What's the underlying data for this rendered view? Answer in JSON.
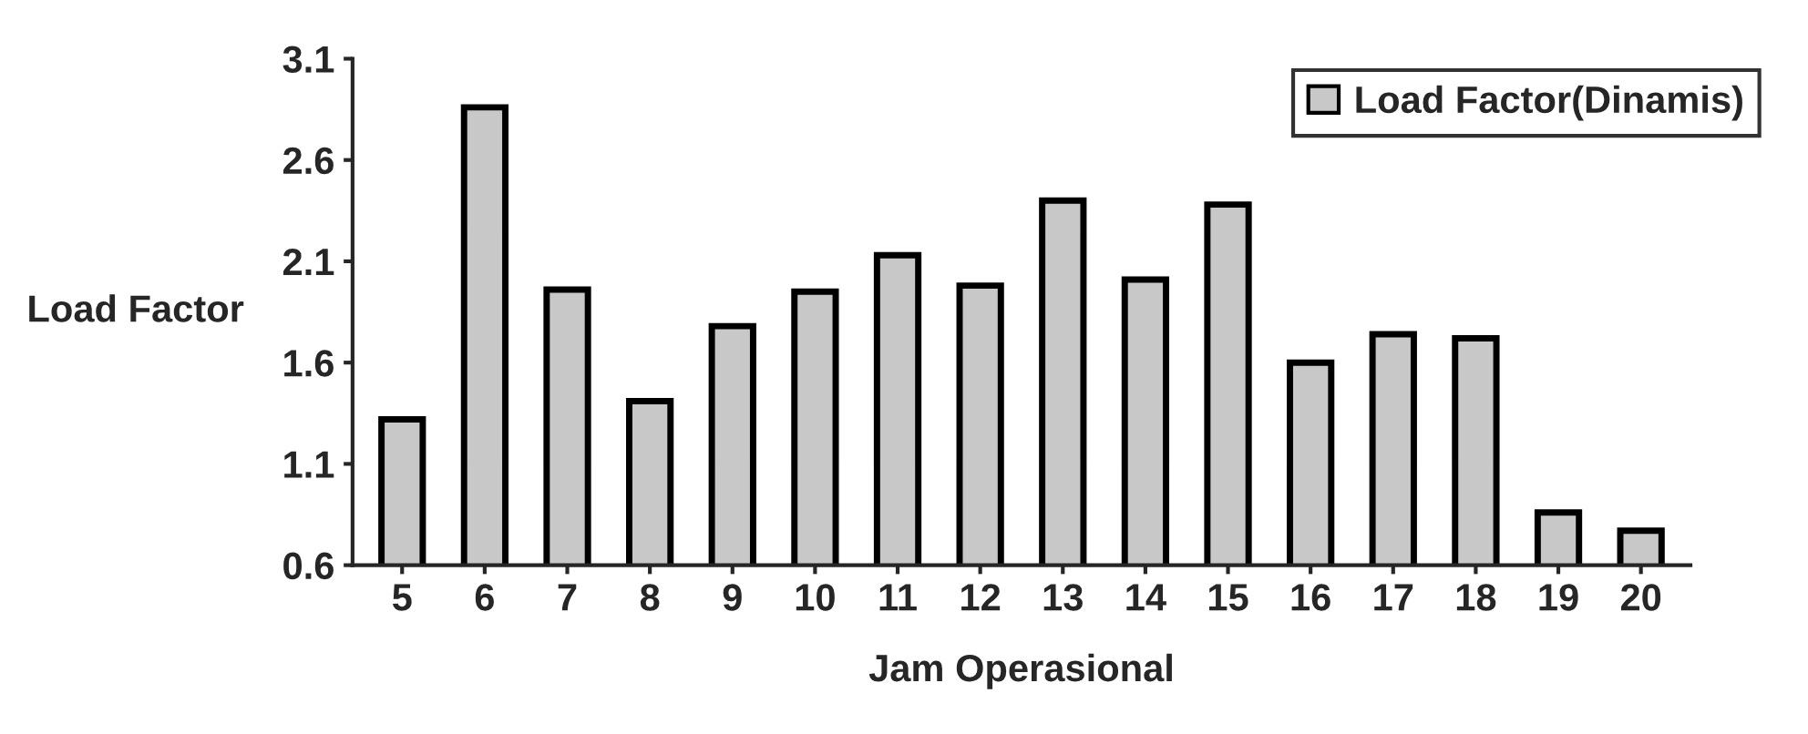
{
  "chart_data": {
    "type": "bar",
    "xlabel": "Jam Operasional",
    "ylabel": "Load Factor",
    "categories": [
      "5",
      "6",
      "7",
      "8",
      "9",
      "10",
      "11",
      "12",
      "13",
      "14",
      "15",
      "16",
      "17",
      "18",
      "19",
      "20"
    ],
    "series": [
      {
        "name": "Load Factor(Dinamis)",
        "color": "#c8c8c8",
        "values": [
          1.32,
          2.86,
          1.96,
          1.41,
          1.78,
          1.95,
          2.13,
          1.98,
          2.4,
          2.01,
          2.38,
          1.6,
          1.74,
          1.72,
          0.86,
          0.77
        ]
      }
    ],
    "ylim": [
      0.6,
      3.1
    ],
    "yticks": [
      {
        "value": 0.6,
        "label": "0.6"
      },
      {
        "value": 1.1,
        "label": "1.1"
      },
      {
        "value": 1.6,
        "label": "1.6"
      },
      {
        "value": 2.1,
        "label": "2.1"
      },
      {
        "value": 2.6,
        "label": "2.6"
      },
      {
        "value": 3.1,
        "label": "3.1"
      }
    ],
    "grid": false,
    "legend": "top right"
  }
}
